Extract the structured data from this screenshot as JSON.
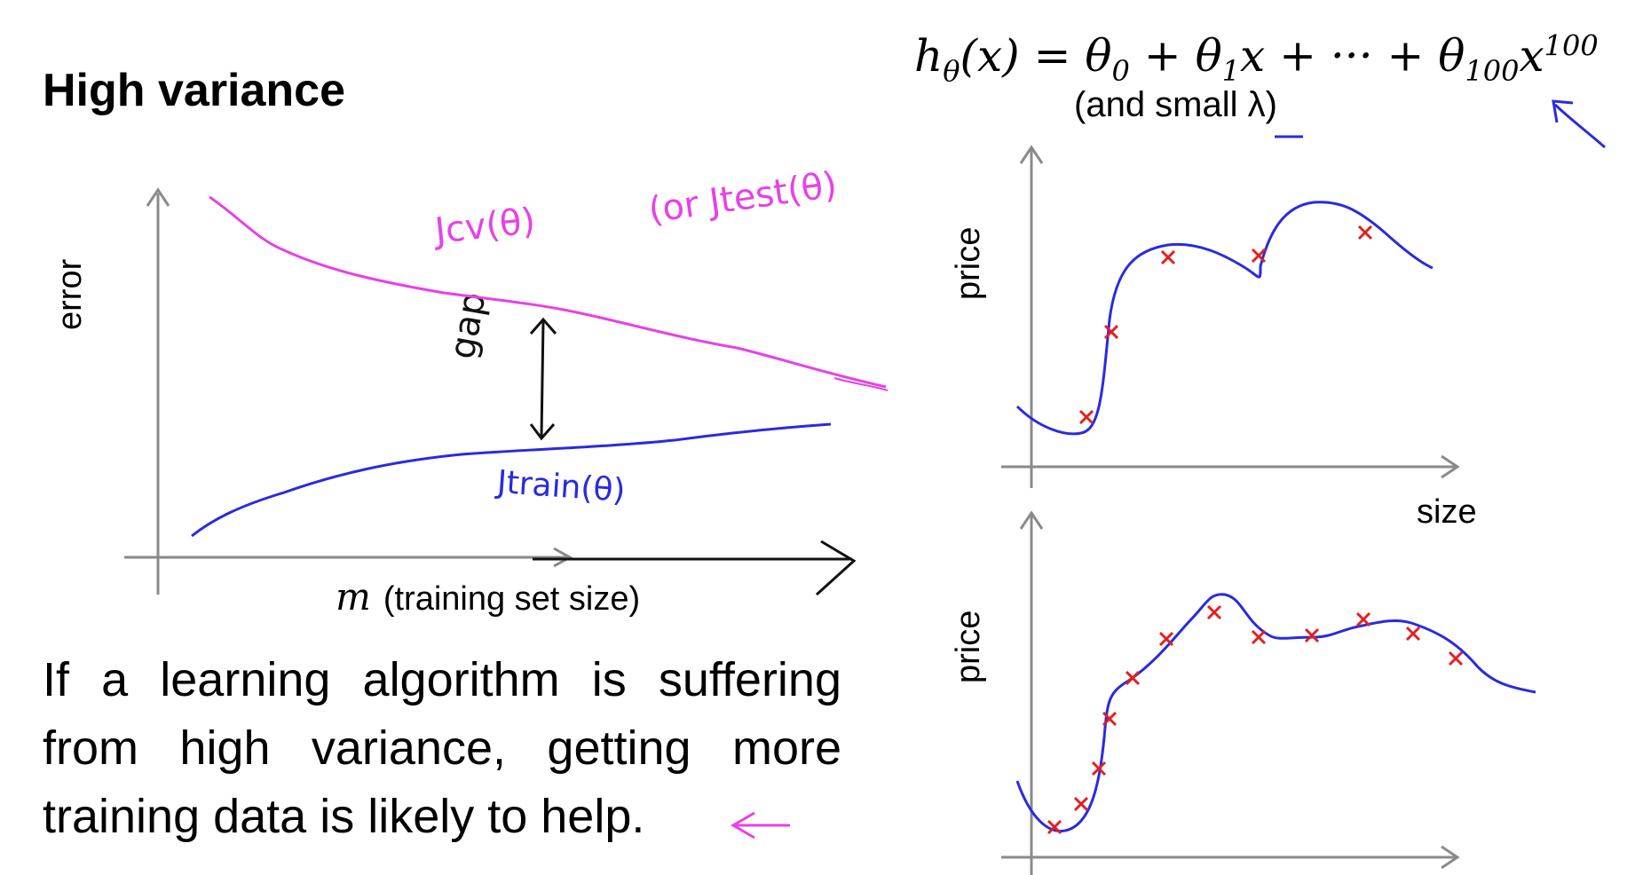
{
  "title": "High variance",
  "hypothesis": {
    "lhs": "hθ(x)",
    "equals": "=",
    "rhs_terms": [
      "θ0",
      "θ1x",
      "θ100x100"
    ],
    "note": "(and small λ)"
  },
  "learning_curve": {
    "y_axis_label": "error",
    "x_axis_symbol": "m",
    "x_axis_label": "(training set size)",
    "cv_curve_label": "Jcv(θ)",
    "test_curve_label": "(or Jtest(θ)",
    "train_curve_label": "Jtrain(θ)",
    "gap_label": "gap"
  },
  "fit_plots": {
    "top_y_label": "price",
    "bottom_y_label": "price",
    "x_label": "size"
  },
  "paragraph": {
    "line1": "If a learning algorithm is suffering",
    "line2": "from high variance, getting more",
    "line3": "training data is likely to help."
  },
  "colors": {
    "cv_curve": "#e642e6",
    "train_curve": "#2a2ae0",
    "fit_curve": "#2a2ae0",
    "data_marker": "#e02020",
    "axis": "#888888",
    "annotation_pen": "#111111"
  }
}
